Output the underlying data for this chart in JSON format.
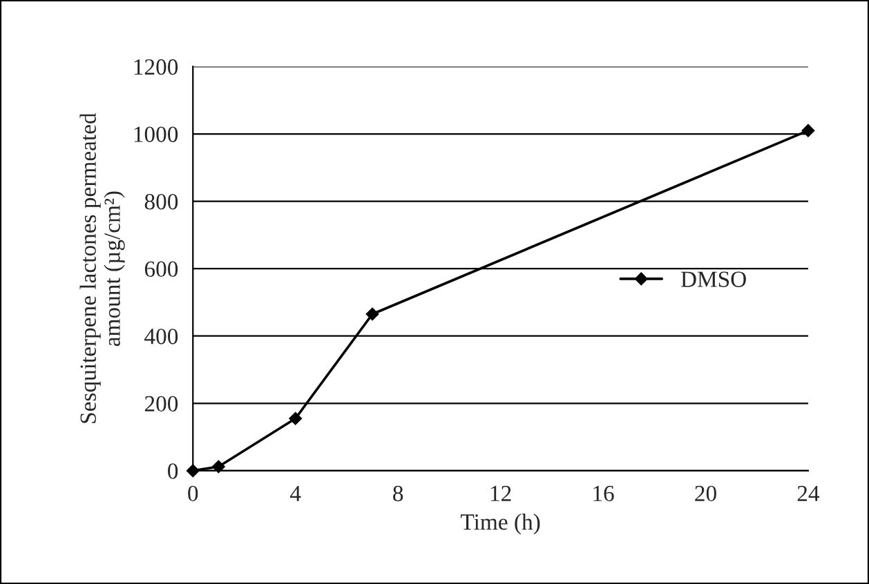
{
  "chart_data": {
    "type": "line",
    "xlabel": "Time (h)",
    "ylabel": "Sesquiterpene lactones permeated\namount (µg/cm²)",
    "x": [
      0,
      1,
      4,
      7,
      24
    ],
    "series": [
      {
        "name": "DMSO",
        "color": "#000000",
        "values": [
          0,
          12,
          155,
          465,
          1010
        ]
      }
    ],
    "xlim": [
      0,
      24
    ],
    "xticks": [
      0,
      4,
      8,
      12,
      16,
      20,
      24
    ],
    "ylim": [
      0,
      1200
    ],
    "yticks": [
      0,
      200,
      400,
      600,
      800,
      1000,
      1200
    ],
    "grid": "y",
    "legend": "right",
    "marker": "diamond",
    "line_style": "solid"
  }
}
